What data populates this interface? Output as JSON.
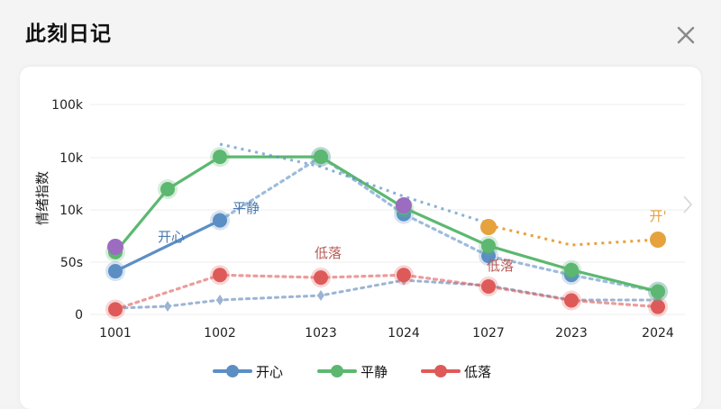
{
  "dialog": {
    "title": "此刻日记",
    "close_icon": "close-icon",
    "next_icon": "chevron-right-icon"
  },
  "chart_data": {
    "type": "line",
    "ylabel": "情绪指数",
    "xlabel": "",
    "y_scale": "log",
    "y_tick_labels": [
      "0",
      "50s",
      "10k",
      "10k",
      "100k"
    ],
    "categories": [
      "1001",
      "1002",
      "1023",
      "1024",
      "1027",
      "2023",
      "2024"
    ],
    "series": [
      {
        "name": "开心",
        "color": "#5b8fc4",
        "values": [
          6,
          10,
          15,
          10.5,
          7.2,
          5.7,
          4.4
        ]
      },
      {
        "name": "平静",
        "color": "#5cb870",
        "values": [
          7.5,
          15,
          15,
          11,
          8,
          6.1,
          4.4
        ]
      },
      {
        "name": "低落",
        "color": "#de5a58",
        "values": [
          3,
          5.7,
          5.5,
          5.7,
          4.8,
          3.7,
          3.2
        ]
      }
    ],
    "annotations": [
      {
        "text": "开心",
        "color": "#4a7aad"
      },
      {
        "text": "平静",
        "color": "#4a7aad"
      },
      {
        "text": "低落",
        "color": "#b75a55"
      },
      {
        "text": "低落",
        "color": "#b75a55"
      },
      {
        "text": "开'",
        "color": "#e6a23c"
      }
    ],
    "grid": true,
    "legend": "bottom"
  }
}
